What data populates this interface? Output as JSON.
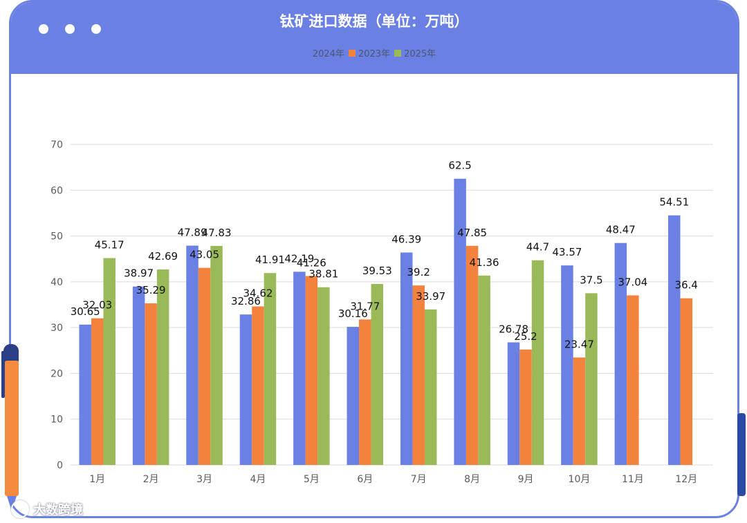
{
  "watermark": {
    "text": "大数跨境"
  },
  "chart_data": {
    "type": "bar",
    "title": "钛矿进口数据（单位：万吨）",
    "xlabel": "",
    "ylabel": "",
    "ylim": [
      0,
      70
    ],
    "yticks": [
      0,
      10,
      20,
      30,
      40,
      50,
      60,
      70
    ],
    "grid": true,
    "legend_position": "top",
    "categories": [
      "1月",
      "2月",
      "3月",
      "4月",
      "5月",
      "6月",
      "7月",
      "8月",
      "9月",
      "10月",
      "11月",
      "12月"
    ],
    "series": [
      {
        "name": "2024年",
        "color": "#6a80e3",
        "values": [
          30.65,
          38.97,
          47.89,
          32.86,
          42.19,
          30.16,
          46.39,
          62.5,
          26.78,
          43.57,
          48.47,
          54.51
        ]
      },
      {
        "name": "2023年",
        "color": "#f3823f",
        "values": [
          32.03,
          35.29,
          43.05,
          34.62,
          41.26,
          31.77,
          39.2,
          47.85,
          25.2,
          23.47,
          37.04,
          36.4
        ]
      },
      {
        "name": "2025年",
        "color": "#9aba59",
        "values": [
          45.17,
          42.69,
          47.83,
          41.91,
          38.81,
          39.53,
          33.97,
          41.36,
          44.7,
          37.5,
          null,
          null
        ]
      }
    ]
  }
}
